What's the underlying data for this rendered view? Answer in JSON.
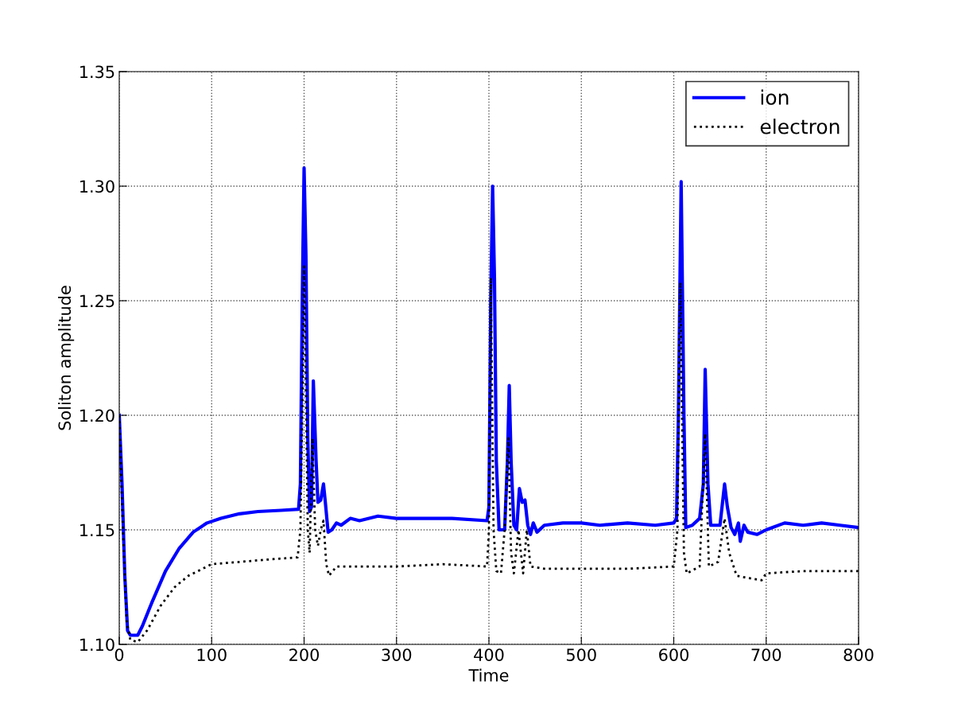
{
  "chart_data": {
    "type": "line",
    "xlabel": "Time",
    "ylabel": "Soliton amplitude",
    "xlim": [
      0,
      800
    ],
    "xticks": [
      0,
      100,
      200,
      300,
      400,
      500,
      600,
      700,
      800
    ],
    "ylim": [
      1.1,
      1.35
    ],
    "yticks": [
      {
        "value": 1.1,
        "label": "1.10"
      },
      {
        "value": 1.15,
        "label": "1.15"
      },
      {
        "value": 1.2,
        "label": "1.20"
      },
      {
        "value": 1.25,
        "label": "1.25"
      },
      {
        "value": 1.3,
        "label": "1.30"
      },
      {
        "value": 1.35,
        "label": "1.35"
      }
    ],
    "grid": true,
    "legend": "top right",
    "series": [
      {
        "name": "ion",
        "color": "#0000ff",
        "line_style": "solid",
        "x": [
          0,
          3,
          6,
          9,
          12,
          20,
          25,
          35,
          50,
          65,
          80,
          95,
          110,
          130,
          150,
          175,
          194,
          196,
          198,
          200,
          202,
          204,
          206,
          208,
          210,
          213,
          215,
          218,
          221,
          223,
          226,
          230,
          235,
          240,
          250,
          260,
          280,
          300,
          330,
          360,
          398,
          400,
          402,
          404,
          406,
          408,
          411,
          417,
          420,
          422,
          424,
          427,
          430,
          433,
          436,
          439,
          442,
          445,
          448,
          452,
          460,
          480,
          500,
          520,
          550,
          580,
          600,
          603,
          605,
          608,
          611,
          613,
          620,
          628,
          632,
          634,
          637,
          640,
          650,
          655,
          658,
          662,
          666,
          670,
          672,
          676,
          680,
          690,
          700,
          720,
          740,
          760,
          780,
          800
        ],
        "values": [
          1.2,
          1.17,
          1.13,
          1.106,
          1.104,
          1.104,
          1.108,
          1.118,
          1.132,
          1.142,
          1.149,
          1.153,
          1.155,
          1.157,
          1.158,
          1.1585,
          1.159,
          1.17,
          1.25,
          1.308,
          1.27,
          1.19,
          1.158,
          1.16,
          1.215,
          1.18,
          1.162,
          1.163,
          1.17,
          1.162,
          1.149,
          1.15,
          1.153,
          1.152,
          1.155,
          1.154,
          1.156,
          1.155,
          1.155,
          1.155,
          1.154,
          1.16,
          1.25,
          1.3,
          1.26,
          1.18,
          1.15,
          1.15,
          1.18,
          1.213,
          1.18,
          1.152,
          1.15,
          1.168,
          1.162,
          1.163,
          1.152,
          1.148,
          1.153,
          1.149,
          1.152,
          1.153,
          1.153,
          1.152,
          1.153,
          1.152,
          1.153,
          1.155,
          1.2,
          1.302,
          1.2,
          1.151,
          1.152,
          1.155,
          1.17,
          1.22,
          1.17,
          1.152,
          1.152,
          1.17,
          1.16,
          1.151,
          1.148,
          1.153,
          1.145,
          1.152,
          1.149,
          1.148,
          1.15,
          1.153,
          1.152,
          1.153,
          1.152,
          1.151
        ]
      },
      {
        "name": "electron",
        "color": "#000000",
        "line_style": "dotted",
        "x": [
          0,
          4,
          8,
          12,
          20,
          30,
          45,
          60,
          75,
          90,
          100,
          130,
          160,
          193,
          196,
          198,
          200,
          202,
          204,
          206,
          209,
          212,
          215,
          218,
          221,
          224,
          227,
          235,
          260,
          300,
          350,
          398,
          400,
          402,
          405,
          408,
          413,
          417,
          421,
          424,
          427,
          432,
          437,
          441,
          445,
          460,
          500,
          550,
          600,
          604,
          607,
          611,
          614,
          628,
          634,
          638,
          648,
          655,
          660,
          668,
          680,
          695,
          700,
          740,
          800
        ],
        "values": [
          1.2,
          1.15,
          1.11,
          1.102,
          1.101,
          1.106,
          1.117,
          1.125,
          1.13,
          1.133,
          1.135,
          1.136,
          1.137,
          1.138,
          1.15,
          1.2,
          1.265,
          1.21,
          1.15,
          1.14,
          1.19,
          1.15,
          1.143,
          1.15,
          1.154,
          1.135,
          1.13,
          1.134,
          1.134,
          1.134,
          1.135,
          1.134,
          1.15,
          1.26,
          1.15,
          1.132,
          1.131,
          1.15,
          1.19,
          1.14,
          1.131,
          1.15,
          1.131,
          1.15,
          1.134,
          1.133,
          1.133,
          1.133,
          1.134,
          1.15,
          1.258,
          1.14,
          1.131,
          1.134,
          1.192,
          1.134,
          1.136,
          1.155,
          1.14,
          1.13,
          1.129,
          1.128,
          1.131,
          1.132,
          1.132
        ]
      }
    ]
  }
}
